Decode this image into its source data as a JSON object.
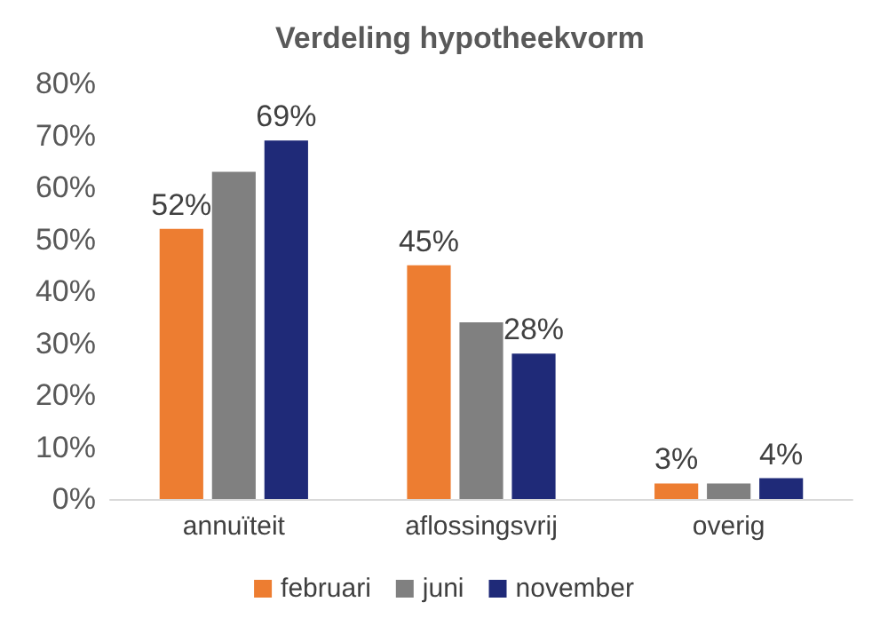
{
  "chart_data": {
    "type": "bar",
    "title": "Verdeling hypotheekvorm",
    "categories": [
      "annuïteit",
      "aflossingsvrij",
      "overig"
    ],
    "series": [
      {
        "name": "februari",
        "color": "#ed7d31",
        "values": [
          52,
          45,
          3
        ],
        "value_labels": [
          "52%",
          "45%",
          "3%"
        ]
      },
      {
        "name": "juni",
        "color": "#808080",
        "values": [
          63,
          34,
          3
        ]
      },
      {
        "name": "november",
        "color": "#1f2a78",
        "values": [
          69,
          28,
          4
        ],
        "value_labels": [
          "69%",
          "28%",
          "4%"
        ]
      }
    ],
    "ylim": [
      0,
      80
    ],
    "yticks": [
      {
        "value": 0,
        "label": "0%"
      },
      {
        "value": 10,
        "label": "10%"
      },
      {
        "value": 20,
        "label": "20%"
      },
      {
        "value": 30,
        "label": "30%"
      },
      {
        "value": 40,
        "label": "40%"
      },
      {
        "value": 50,
        "label": "50%"
      },
      {
        "value": 60,
        "label": "60%"
      },
      {
        "value": 70,
        "label": "70%"
      },
      {
        "value": 80,
        "label": "80%"
      }
    ],
    "grid": false,
    "legend": "bottom"
  }
}
